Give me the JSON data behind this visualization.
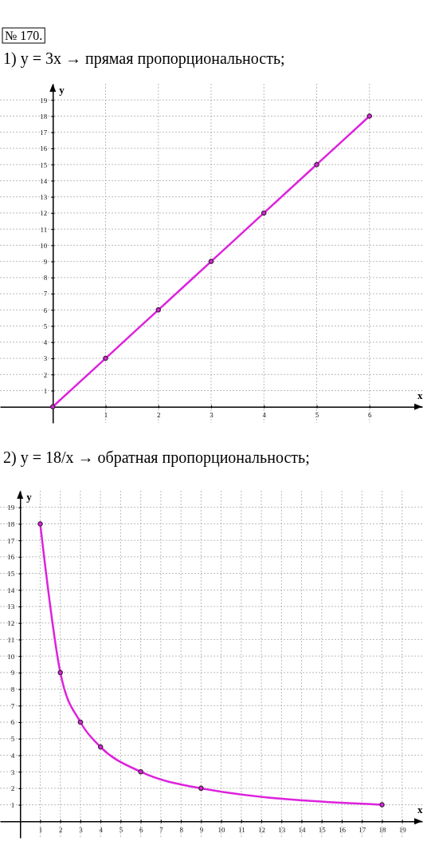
{
  "chart_data": [
    {
      "type": "line",
      "title": "1) y = 3x → прямая пропорциональность;",
      "annotations": [
        "№ 170."
      ],
      "xlabel": "x",
      "ylabel": "y",
      "xlim": [
        -1,
        7
      ],
      "ylim": [
        -1,
        20
      ],
      "xticks": [
        1,
        2,
        3,
        4,
        5,
        6
      ],
      "yticks": [
        1,
        2,
        3,
        4,
        5,
        6,
        7,
        8,
        9,
        10,
        11,
        12,
        13,
        14,
        15,
        16,
        17,
        18,
        19
      ],
      "grid": true,
      "marker": "circle",
      "line_style": "solid",
      "series": [
        {
          "color": "#dd22dd",
          "x": [
            0,
            1,
            2,
            3,
            4,
            5,
            6
          ],
          "values": [
            0,
            3,
            6,
            9,
            12,
            15,
            18
          ]
        }
      ]
    },
    {
      "type": "line",
      "title": "2) y = 18/x → обратная пропорциональность;",
      "xlabel": "x",
      "ylabel": "y",
      "xlim": [
        -1,
        20
      ],
      "ylim": [
        -1,
        20
      ],
      "xticks": [
        1,
        2,
        3,
        4,
        5,
        6,
        7,
        8,
        9,
        10,
        11,
        12,
        13,
        14,
        15,
        16,
        17,
        18,
        19
      ],
      "yticks": [
        1,
        2,
        3,
        4,
        5,
        6,
        7,
        8,
        9,
        10,
        11,
        12,
        13,
        14,
        15,
        16,
        17,
        18,
        19
      ],
      "grid": true,
      "marker": "circle",
      "line_style": "solid",
      "series": [
        {
          "color": "#dd22dd",
          "x": [
            1,
            2,
            3,
            4,
            6,
            9,
            18
          ],
          "values": [
            18,
            9,
            6,
            4.5,
            3,
            2,
            1
          ]
        }
      ]
    }
  ]
}
